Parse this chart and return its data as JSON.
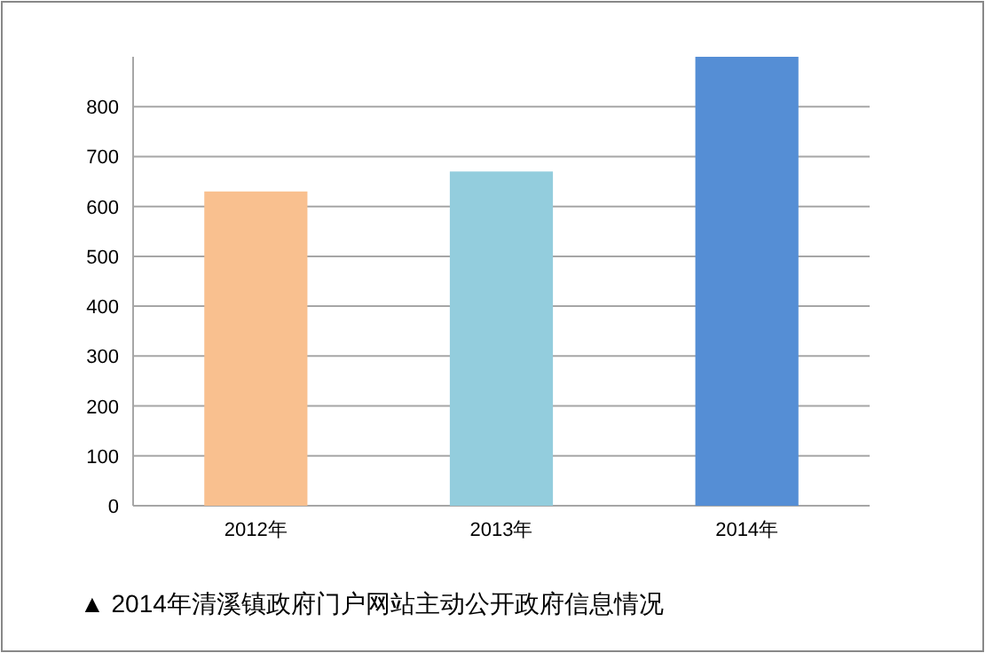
{
  "chart_data": {
    "type": "bar",
    "categories": [
      "2012年",
      "2013年",
      "2014年"
    ],
    "values": [
      630,
      670,
      900
    ],
    "colors": [
      "#f9c08f",
      "#93cddd",
      "#558ed5"
    ],
    "ylim": [
      0,
      900
    ],
    "yticks": [
      0,
      100,
      200,
      300,
      400,
      500,
      600,
      700,
      800
    ],
    "grid": "y",
    "annotations": [
      "▲ 2014年清溪镇政府门户网站主动公开政府信息情况"
    ]
  }
}
